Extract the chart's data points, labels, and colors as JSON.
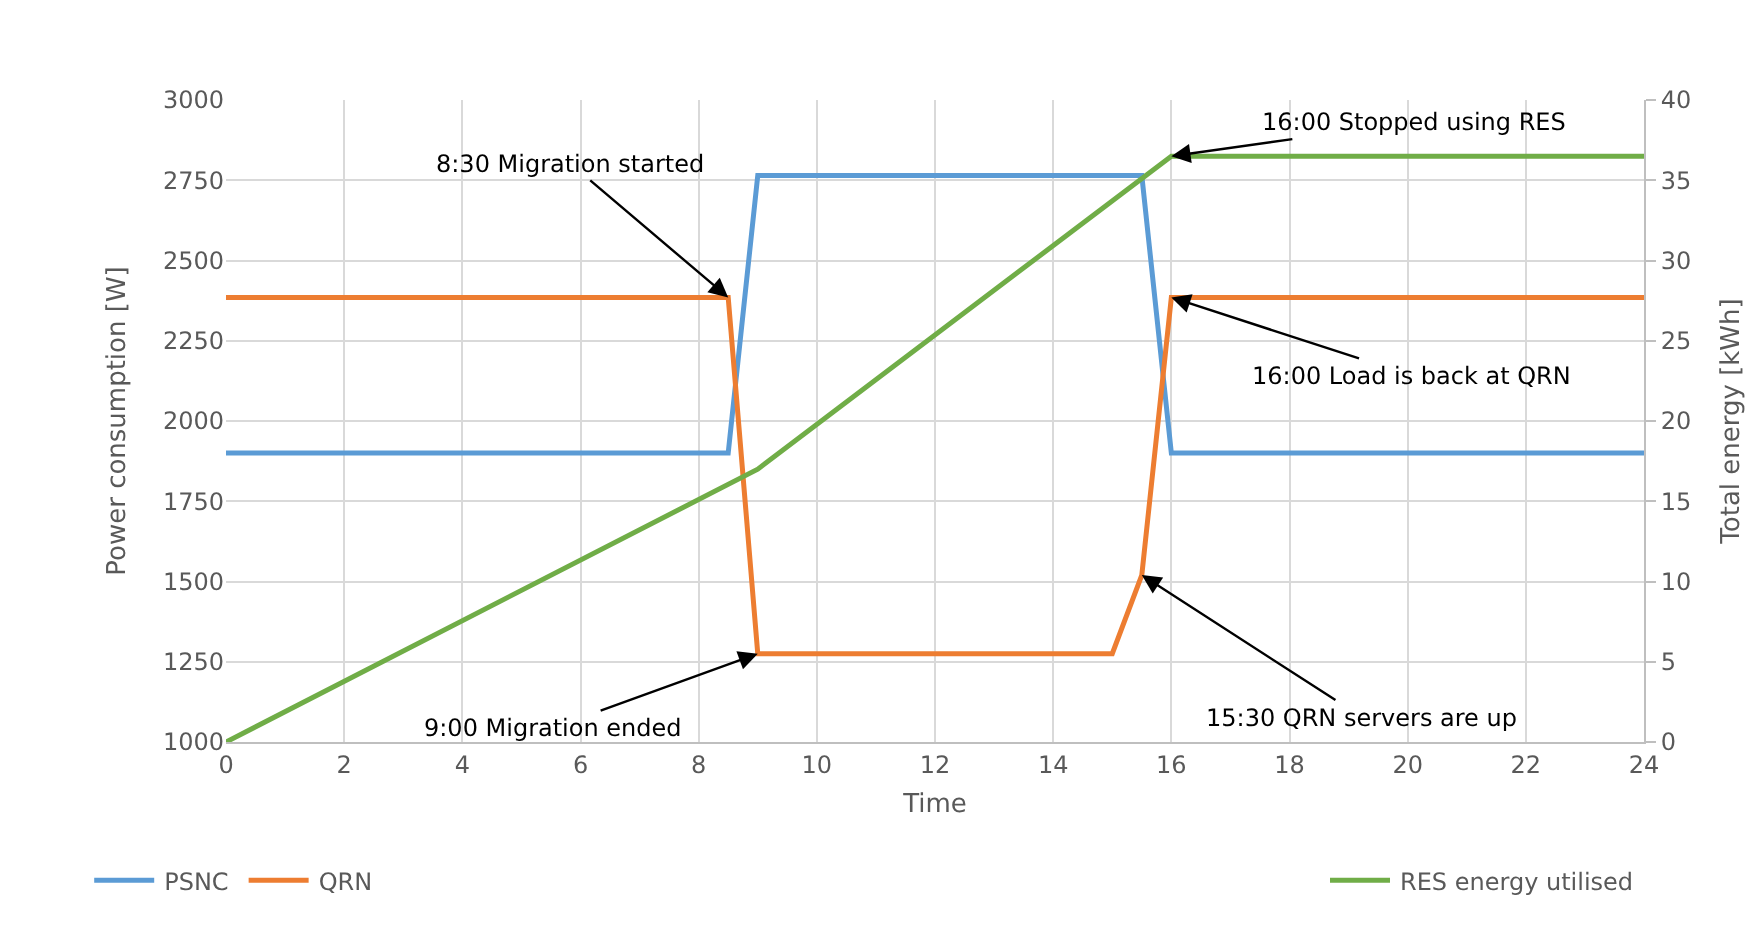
{
  "chart_data": {
    "type": "line",
    "xlabel": "Time",
    "ylabel": "Power consumption [W]",
    "y2label": "Total energy [kWh]",
    "xlim": [
      0,
      24
    ],
    "xticks": [
      0,
      2,
      4,
      6,
      8,
      10,
      12,
      14,
      16,
      18,
      20,
      22,
      24
    ],
    "ylim": [
      1000,
      3000
    ],
    "yticks": [
      1000,
      1250,
      1500,
      1750,
      2000,
      2250,
      2500,
      2750,
      3000
    ],
    "y2lim": [
      0,
      40
    ],
    "y2ticks": [
      0,
      5,
      10,
      15,
      20,
      25,
      30,
      35,
      40
    ],
    "grid": true,
    "legend": "bottom",
    "marker": "none",
    "line_style": "solid",
    "series": [
      {
        "name": "PSNC",
        "color": "#5b9bd5",
        "x": [
          0,
          8.5,
          9,
          15.5,
          16,
          24
        ],
        "values": [
          1900,
          1900,
          2765,
          2765,
          1900,
          1900
        ]
      },
      {
        "name": "QRN",
        "color": "#ed7d31",
        "x": [
          0,
          8.5,
          9,
          15,
          15.5,
          16,
          24
        ],
        "values": [
          2385,
          2385,
          1275,
          1275,
          1520,
          2385,
          2385
        ]
      },
      {
        "name": "RES energy utilised",
        "color": "#70ad47",
        "axis": "y2",
        "x": [
          0,
          9,
          16,
          24
        ],
        "values": [
          0,
          17,
          36.5,
          36.5
        ]
      }
    ],
    "annotations": [
      {
        "text": "8:30 Migration started",
        "x": 8.5,
        "y": 2385
      },
      {
        "text": "9:00 Migration ended",
        "x": 9,
        "y": 1275
      },
      {
        "text": "16:00 Stopped using RES",
        "x": 16,
        "y": 2825
      },
      {
        "text": "16:00 Load is back at QRN",
        "x": 16,
        "y": 2385
      },
      {
        "text": "15:30 QRN servers are up",
        "x": 15.5,
        "y": 1520
      }
    ]
  }
}
